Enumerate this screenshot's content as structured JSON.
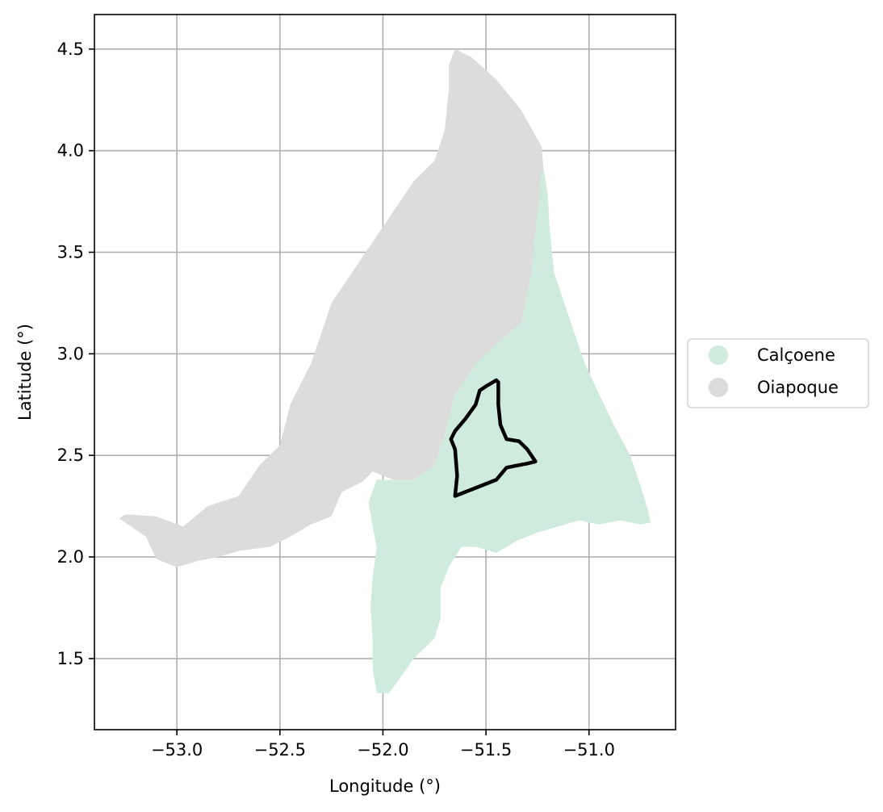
{
  "chart_data": {
    "type": "map",
    "xlabel": "Longitude (°)",
    "ylabel": "Latitude (°)",
    "xlim": [
      -53.4,
      -50.58
    ],
    "ylim": [
      1.15,
      4.67
    ],
    "x_ticks": [
      -53.0,
      -52.5,
      -52.0,
      -51.5,
      -51.0
    ],
    "x_tick_labels": [
      "−53.0",
      "−52.5",
      "−52.0",
      "−51.5",
      "−51.0"
    ],
    "y_ticks": [
      1.5,
      2.0,
      2.5,
      3.0,
      3.5,
      4.0,
      4.5
    ],
    "y_tick_labels": [
      "1.5",
      "2.0",
      "2.5",
      "3.0",
      "3.5",
      "4.0",
      "4.5"
    ],
    "grid": true,
    "legend": {
      "placement": "right-center",
      "entries": [
        {
          "label": "Calçoene",
          "color": "#cfebdd"
        },
        {
          "label": "Oiapoque",
          "color": "#dcdcdc"
        }
      ]
    },
    "regions": [
      {
        "name": "Oiapoque",
        "color": "#dcdcdc",
        "lonlat": [
          [
            -51.65,
            4.5
          ],
          [
            -51.57,
            4.46
          ],
          [
            -51.45,
            4.35
          ],
          [
            -51.33,
            4.2
          ],
          [
            -51.23,
            4.02
          ],
          [
            -51.22,
            3.9
          ],
          [
            -51.25,
            3.7
          ],
          [
            -51.28,
            3.4
          ],
          [
            -51.33,
            3.15
          ],
          [
            -51.45,
            3.05
          ],
          [
            -51.55,
            2.95
          ],
          [
            -51.65,
            2.8
          ],
          [
            -51.7,
            2.6
          ],
          [
            -51.75,
            2.45
          ],
          [
            -51.85,
            2.38
          ],
          [
            -51.95,
            2.38
          ],
          [
            -52.05,
            2.42
          ],
          [
            -52.1,
            2.37
          ],
          [
            -52.2,
            2.32
          ],
          [
            -52.25,
            2.2
          ],
          [
            -52.35,
            2.16
          ],
          [
            -52.45,
            2.1
          ],
          [
            -52.55,
            2.05
          ],
          [
            -52.7,
            2.03
          ],
          [
            -52.8,
            2.0
          ],
          [
            -52.9,
            1.98
          ],
          [
            -53.0,
            1.95
          ],
          [
            -53.1,
            1.99
          ],
          [
            -53.15,
            2.1
          ],
          [
            -53.28,
            2.19
          ],
          [
            -53.25,
            2.21
          ],
          [
            -53.1,
            2.2
          ],
          [
            -52.97,
            2.15
          ],
          [
            -52.85,
            2.25
          ],
          [
            -52.7,
            2.3
          ],
          [
            -52.6,
            2.45
          ],
          [
            -52.5,
            2.55
          ],
          [
            -52.45,
            2.75
          ],
          [
            -52.35,
            2.95
          ],
          [
            -52.3,
            3.1
          ],
          [
            -52.25,
            3.25
          ],
          [
            -52.15,
            3.4
          ],
          [
            -52.05,
            3.55
          ],
          [
            -51.95,
            3.7
          ],
          [
            -51.85,
            3.85
          ],
          [
            -51.75,
            3.95
          ],
          [
            -51.7,
            4.1
          ],
          [
            -51.68,
            4.3
          ],
          [
            -51.68,
            4.42
          ]
        ]
      },
      {
        "name": "Calçoene",
        "color": "#cfebdd",
        "lonlat": [
          [
            -51.22,
            3.91
          ],
          [
            -51.2,
            3.78
          ],
          [
            -51.19,
            3.6
          ],
          [
            -51.17,
            3.4
          ],
          [
            -51.12,
            3.25
          ],
          [
            -51.07,
            3.1
          ],
          [
            -51.02,
            2.95
          ],
          [
            -50.95,
            2.8
          ],
          [
            -50.88,
            2.65
          ],
          [
            -50.8,
            2.5
          ],
          [
            -50.75,
            2.35
          ],
          [
            -50.72,
            2.25
          ],
          [
            -50.7,
            2.17
          ],
          [
            -50.75,
            2.16
          ],
          [
            -50.85,
            2.18
          ],
          [
            -50.95,
            2.16
          ],
          [
            -51.05,
            2.18
          ],
          [
            -51.15,
            2.15
          ],
          [
            -51.25,
            2.12
          ],
          [
            -51.35,
            2.08
          ],
          [
            -51.45,
            2.02
          ],
          [
            -51.55,
            2.05
          ],
          [
            -51.62,
            2.05
          ],
          [
            -51.68,
            1.95
          ],
          [
            -51.72,
            1.85
          ],
          [
            -51.72,
            1.7
          ],
          [
            -51.75,
            1.6
          ],
          [
            -51.85,
            1.5
          ],
          [
            -51.92,
            1.4
          ],
          [
            -51.97,
            1.33
          ],
          [
            -52.03,
            1.33
          ],
          [
            -52.05,
            1.45
          ],
          [
            -52.05,
            1.6
          ],
          [
            -52.06,
            1.75
          ],
          [
            -52.05,
            1.9
          ],
          [
            -52.03,
            2.05
          ],
          [
            -52.05,
            2.15
          ],
          [
            -52.07,
            2.27
          ],
          [
            -52.03,
            2.38
          ],
          [
            -51.95,
            2.38
          ],
          [
            -51.85,
            2.38
          ],
          [
            -51.75,
            2.45
          ],
          [
            -51.7,
            2.6
          ],
          [
            -51.65,
            2.8
          ],
          [
            -51.55,
            2.95
          ],
          [
            -51.45,
            3.05
          ],
          [
            -51.33,
            3.15
          ],
          [
            -51.28,
            3.4
          ],
          [
            -51.25,
            3.7
          ],
          [
            -51.23,
            3.9
          ]
        ]
      }
    ],
    "outline": {
      "color": "#000000",
      "lonlat": [
        [
          -51.45,
          2.87
        ],
        [
          -51.5,
          2.84
        ],
        [
          -51.53,
          2.82
        ],
        [
          -51.55,
          2.75
        ],
        [
          -51.6,
          2.68
        ],
        [
          -51.65,
          2.62
        ],
        [
          -51.67,
          2.58
        ],
        [
          -51.65,
          2.53
        ],
        [
          -51.64,
          2.4
        ],
        [
          -51.65,
          2.3
        ],
        [
          -51.6,
          2.32
        ],
        [
          -51.55,
          2.34
        ],
        [
          -51.45,
          2.38
        ],
        [
          -51.4,
          2.44
        ],
        [
          -51.3,
          2.46
        ],
        [
          -51.26,
          2.47
        ],
        [
          -51.3,
          2.53
        ],
        [
          -51.34,
          2.57
        ],
        [
          -51.4,
          2.58
        ],
        [
          -51.43,
          2.65
        ],
        [
          -51.44,
          2.75
        ],
        [
          -51.44,
          2.86
        ]
      ]
    }
  }
}
